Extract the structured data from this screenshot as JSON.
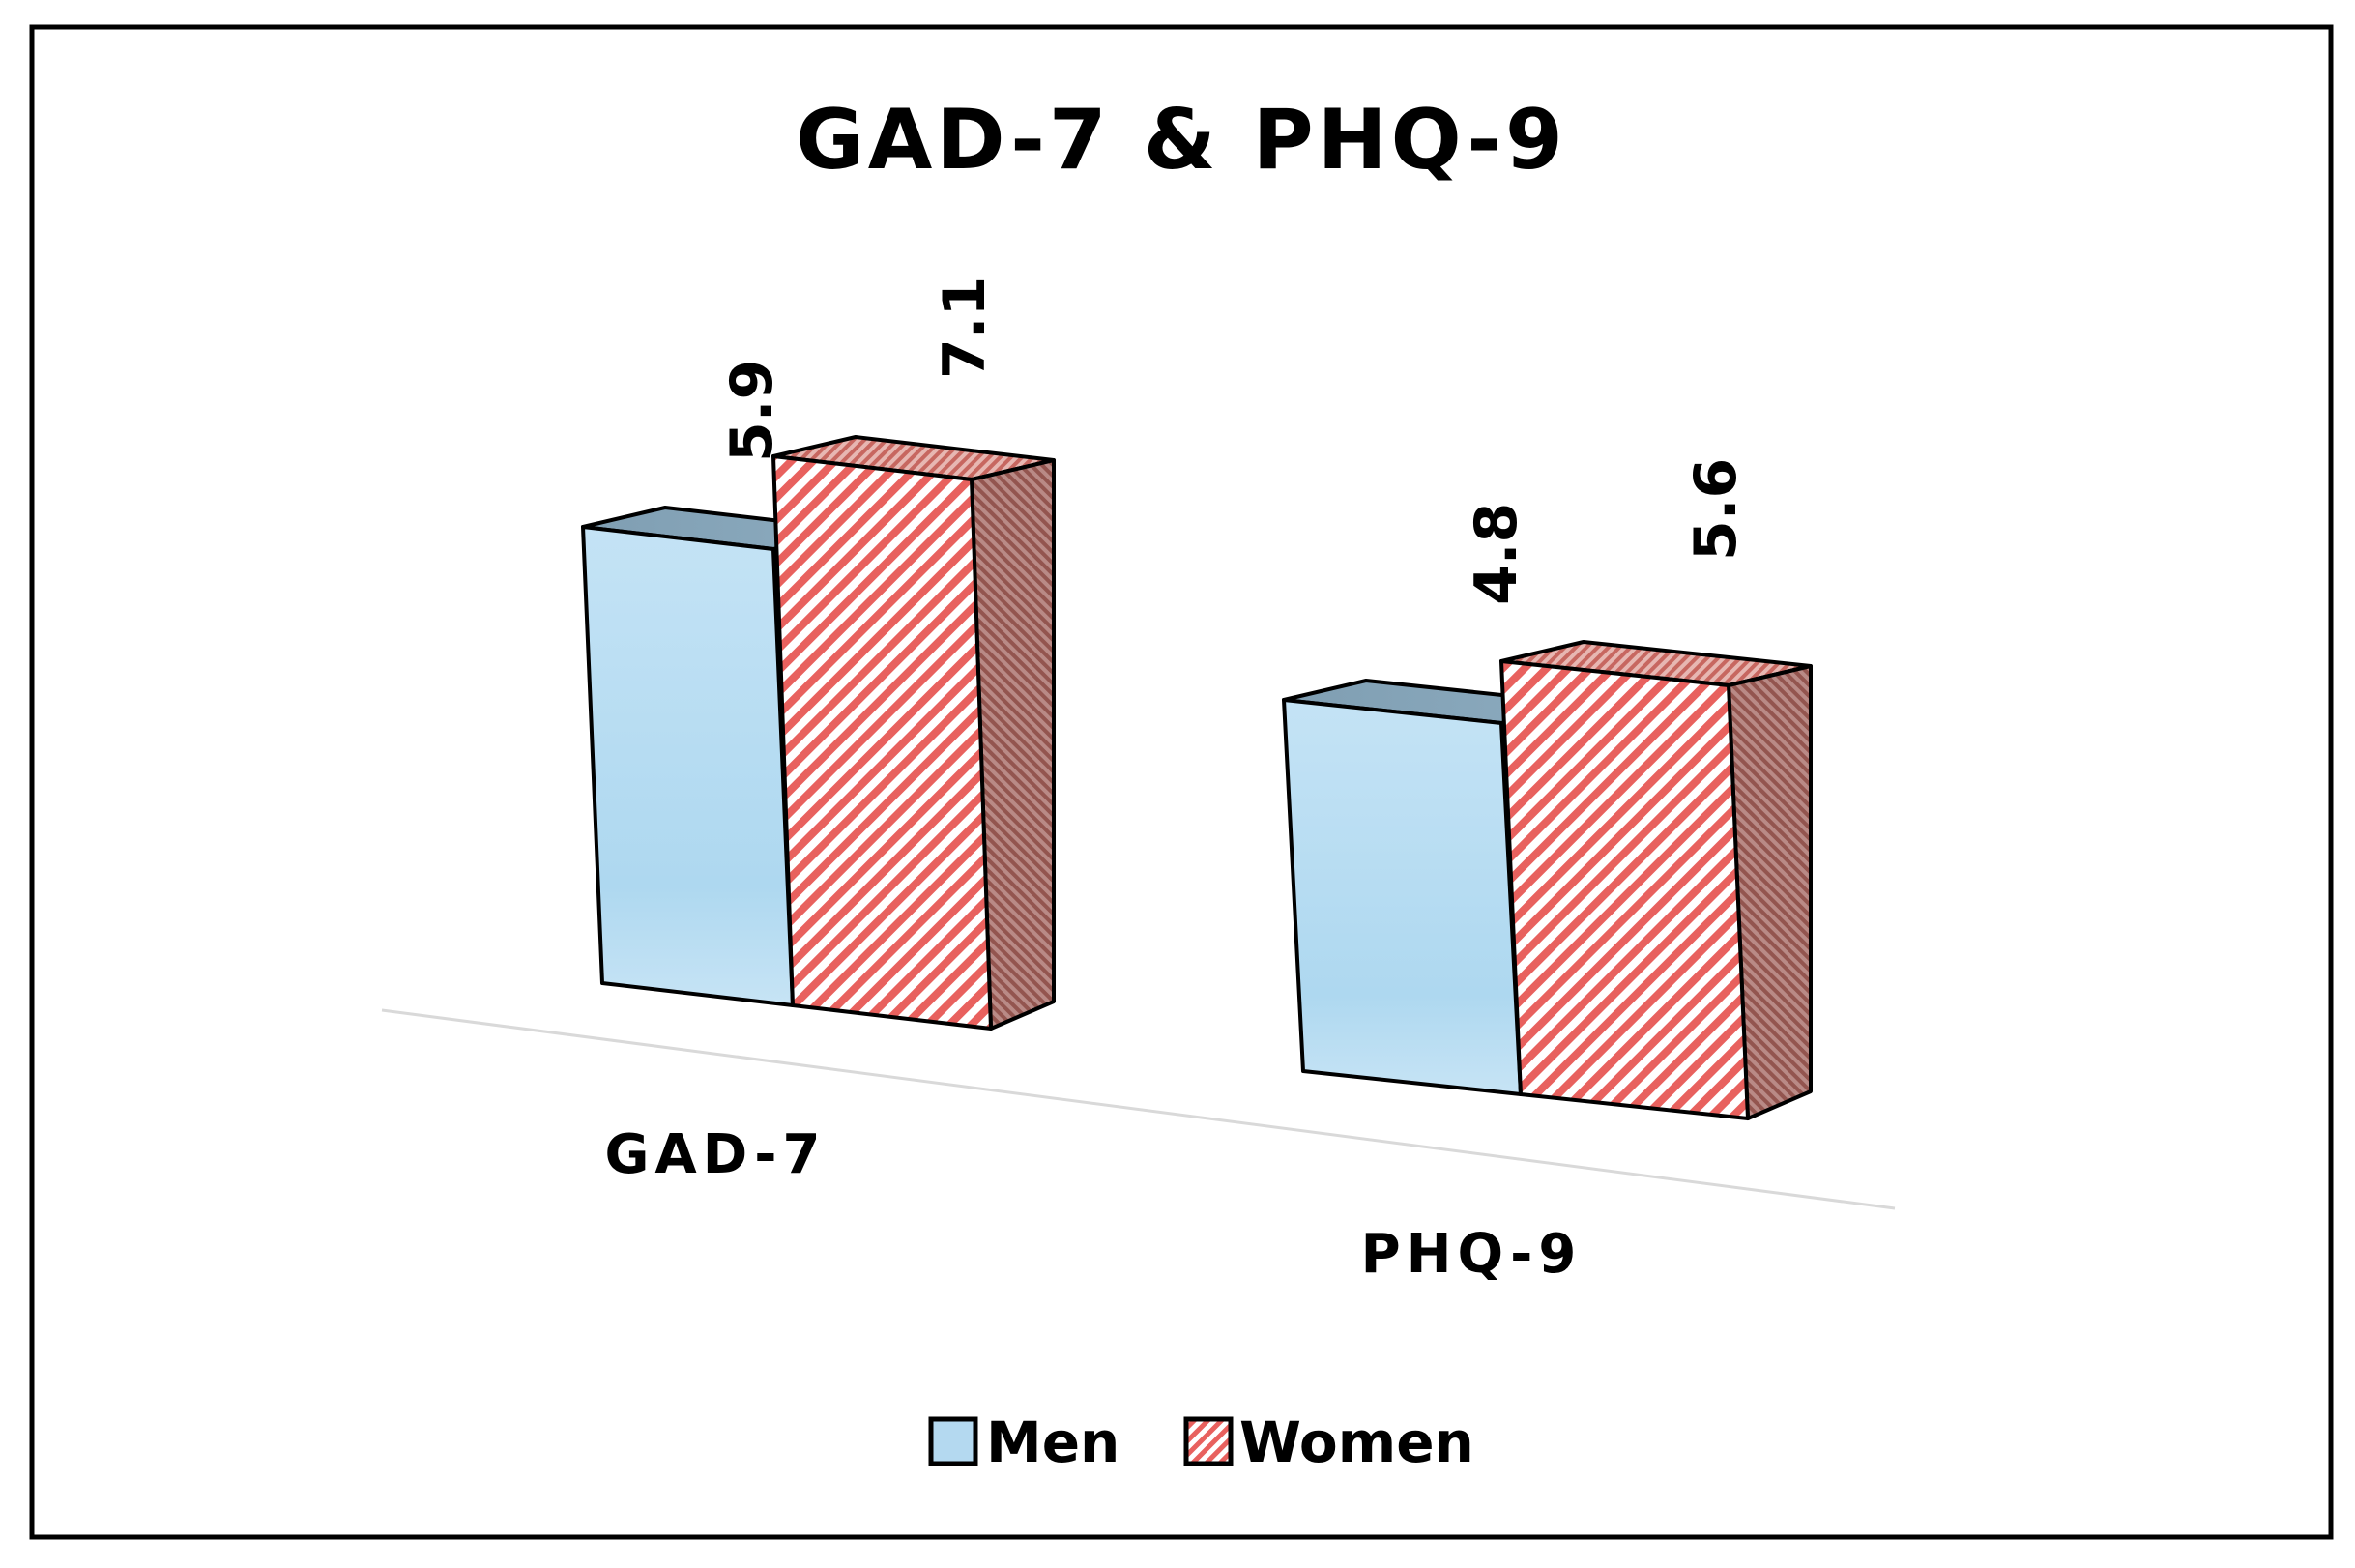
{
  "chart_data": {
    "type": "bar",
    "title": "GAD-7 & PHQ-9",
    "categories": [
      "GAD-7",
      "PHQ-9"
    ],
    "series": [
      {
        "name": "Men",
        "values": [
          5.9,
          4.8
        ],
        "color": "#b4d9f0",
        "pattern": "solid"
      },
      {
        "name": "Women",
        "values": [
          7.1,
          5.6
        ],
        "color": "#e8615e",
        "pattern": "diagonal-hatch"
      }
    ],
    "data_labels": [
      "5.9",
      "7.1",
      "4.8",
      "5.6"
    ],
    "xlabel": "",
    "ylabel": "",
    "ylim": [
      0,
      8
    ],
    "grid": false,
    "legend_position": "bottom",
    "style": "3d-clustered"
  }
}
